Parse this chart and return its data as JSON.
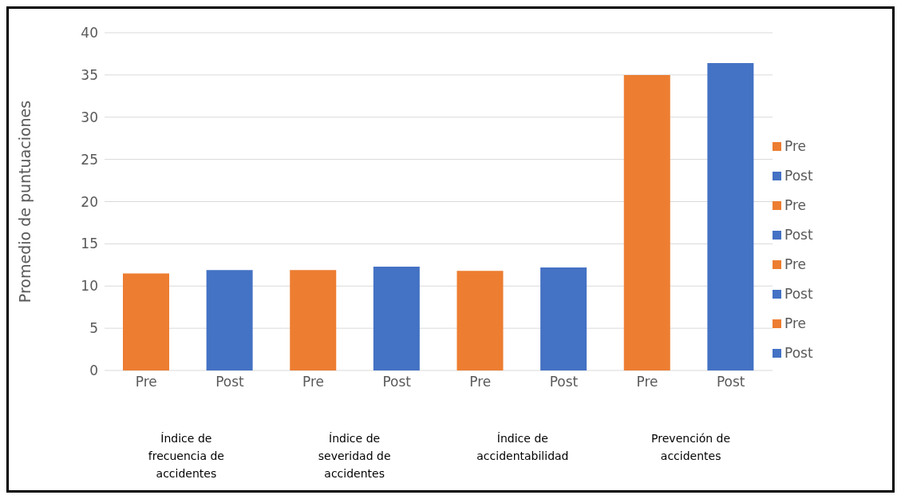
{
  "chart_data": {
    "type": "bar",
    "ylabel": "Promedio de puntuaciones",
    "categories": [
      "Pre",
      "Post",
      "Pre",
      "Post",
      "Pre",
      "Post",
      "Pre",
      "Post"
    ],
    "series": [
      {
        "name": "Pre",
        "color": "#ed7d31",
        "values": [
          11.5,
          null,
          null,
          null,
          null,
          null,
          null,
          null
        ]
      },
      {
        "name": "Post",
        "color": "#4472c4",
        "values": [
          null,
          11.9,
          null,
          null,
          null,
          null,
          null,
          null
        ]
      },
      {
        "name": "Pre",
        "color": "#ed7d31",
        "values": [
          null,
          null,
          11.9,
          null,
          null,
          null,
          null,
          null
        ]
      },
      {
        "name": "Post",
        "color": "#4472c4",
        "values": [
          null,
          null,
          null,
          12.3,
          null,
          null,
          null,
          null
        ]
      },
      {
        "name": "Pre",
        "color": "#ed7d31",
        "values": [
          null,
          null,
          null,
          null,
          11.8,
          null,
          null,
          null
        ]
      },
      {
        "name": "Post",
        "color": "#4472c4",
        "values": [
          null,
          null,
          null,
          null,
          null,
          12.2,
          null,
          null
        ]
      },
      {
        "name": "Pre",
        "color": "#ed7d31",
        "values": [
          null,
          null,
          null,
          null,
          null,
          null,
          35.0,
          null
        ]
      },
      {
        "name": "Post",
        "color": "#4472c4",
        "values": [
          null,
          null,
          null,
          null,
          null,
          null,
          null,
          36.4
        ]
      }
    ],
    "ylim": [
      0,
      40
    ],
    "yticks": [
      0,
      5,
      10,
      15,
      20,
      25,
      30,
      35,
      40
    ],
    "grid": "y",
    "legend": "right",
    "annotations": [
      "Índice de frecuencia de accidentes",
      "Índice de severidad de accidentes",
      "Índice de accidentabilidad",
      "Prevención de accidentes"
    ]
  }
}
